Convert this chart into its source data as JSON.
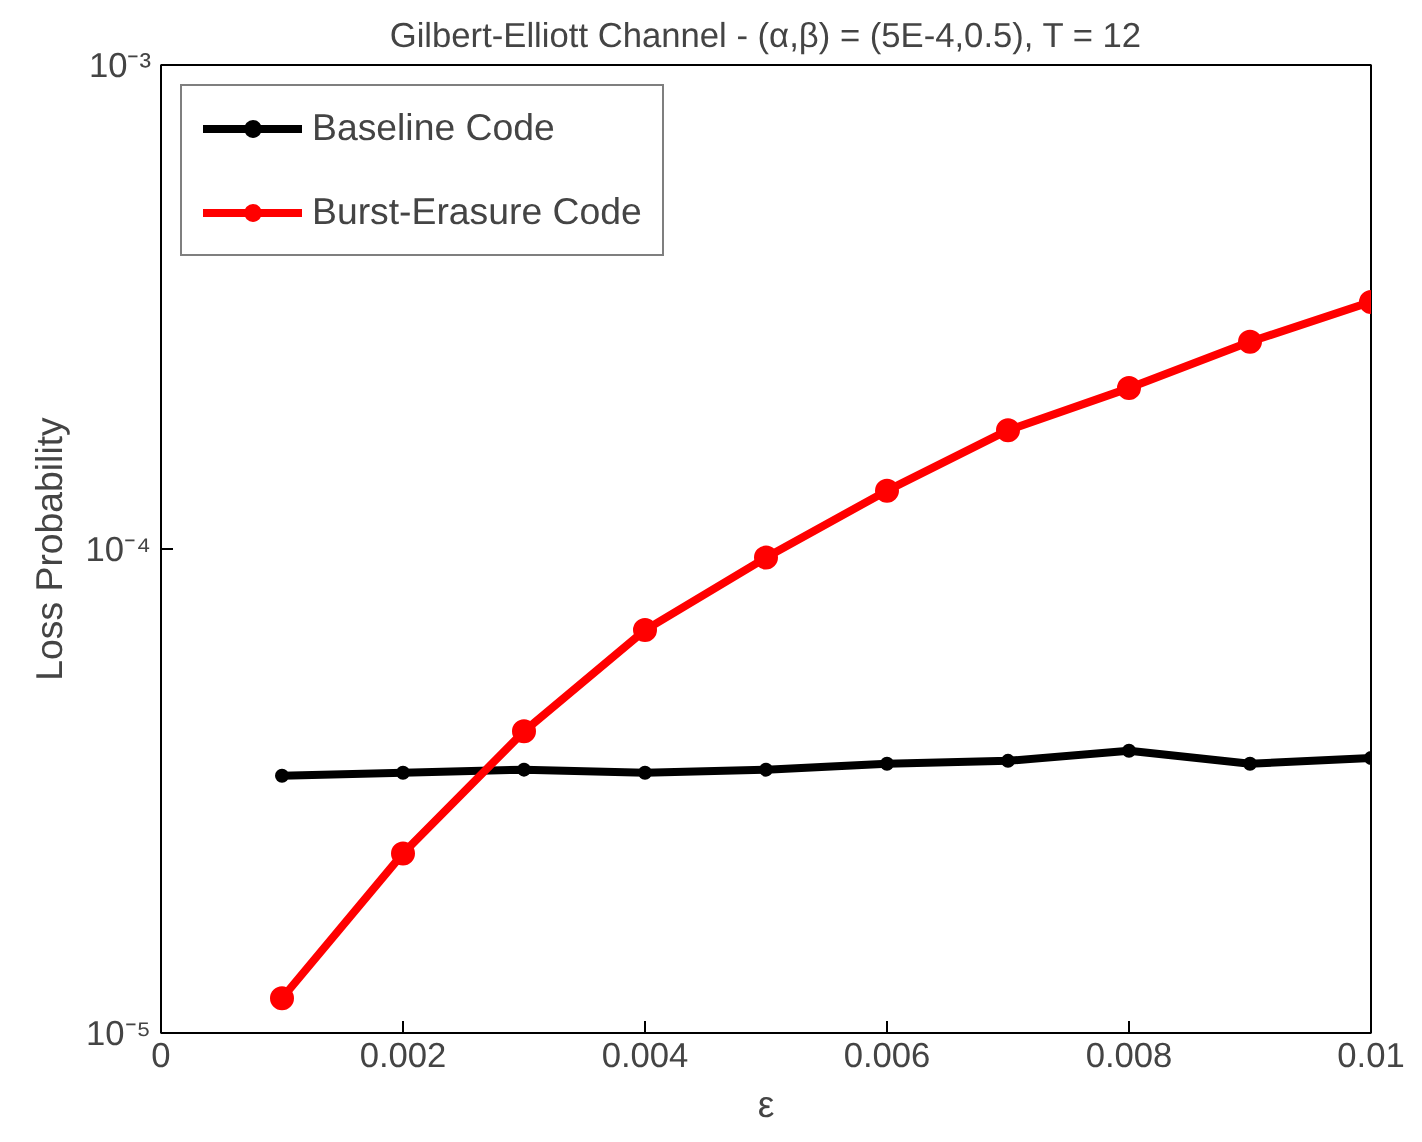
{
  "chart_data": {
    "type": "line",
    "title": "Gilbert-Elliott Channel - (α,β) = (5E-4,0.5), T = 12",
    "xlabel": "ε",
    "ylabel": "Loss Probability",
    "x": [
      0.001,
      0.002,
      0.003,
      0.004,
      0.005,
      0.006,
      0.007,
      0.008,
      0.009,
      0.01
    ],
    "series": [
      {
        "name": "Baseline Code",
        "color": "#000000",
        "marker": "circle",
        "values": [
          3.4e-05,
          3.45e-05,
          3.5e-05,
          3.45e-05,
          3.5e-05,
          3.6e-05,
          3.65e-05,
          3.83e-05,
          3.6e-05,
          3.7e-05
        ]
      },
      {
        "name": "Burst-Erasure Code",
        "color": "#ff0000",
        "marker": "circle",
        "values": [
          1.18e-05,
          2.35e-05,
          4.2e-05,
          6.8e-05,
          9.6e-05,
          0.000132,
          0.000176,
          0.000215,
          0.000268,
          0.000324
        ]
      }
    ],
    "xlim": [
      0,
      0.01
    ],
    "xticks": [
      0,
      0.002,
      0.004,
      0.006,
      0.008,
      0.01
    ],
    "ylim": [
      1e-05,
      0.001
    ],
    "yticks": [
      {
        "value": 1e-05,
        "label": "10⁻⁵"
      },
      {
        "value": 0.0001,
        "label": "10⁻⁴"
      },
      {
        "value": 0.001,
        "label": "10⁻³"
      }
    ],
    "log": "y",
    "grid": false,
    "legend": "top left",
    "line_style": "solid"
  }
}
